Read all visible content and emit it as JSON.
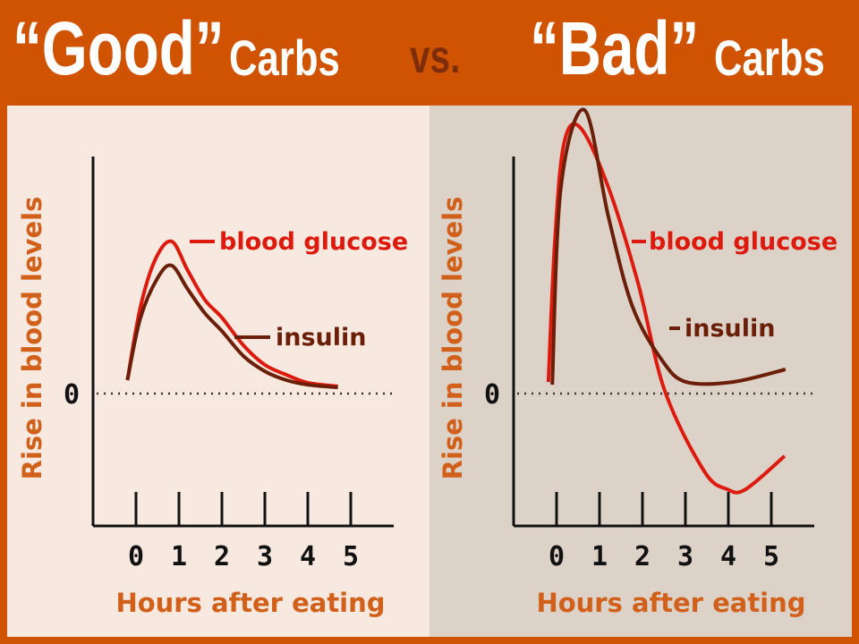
{
  "title": {
    "good": "“Good”",
    "carbs_left": "Carbs",
    "vs": "vs.",
    "bad": "“Bad”",
    "carbs_right": "Carbs"
  },
  "colors": {
    "frame": "#cf5300",
    "good_bg": "#f7e9df",
    "bad_bg": "#ddd2c8",
    "glucose": "#dd1a0e",
    "insulin": "#6b1f08",
    "axis_label": "#d0601a"
  },
  "chart_data": [
    {
      "type": "line",
      "title": "“Good” Carbs",
      "xlabel": "Hours after eating",
      "ylabel": "Rise in blood levels",
      "xticks": [
        "0",
        "1",
        "2",
        "3",
        "4",
        "5"
      ],
      "yticks": [
        "0"
      ],
      "xlim": [
        -1,
        6.2
      ],
      "ylim": [
        -4.9,
        8.8
      ],
      "series": [
        {
          "name": "blood glucose",
          "color": "#dd1a0e",
          "x": [
            -0.2,
            0.1,
            0.45,
            0.83,
            1.2,
            1.6,
            2,
            2.5,
            3,
            3.5,
            4,
            4.7
          ],
          "y": [
            0.5,
            3.2,
            5.0,
            5.67,
            4.6,
            3.5,
            2.83,
            1.8,
            1.07,
            0.7,
            0.4,
            0.27
          ]
        },
        {
          "name": "insulin",
          "color": "#6b1f08",
          "x": [
            -0.2,
            0.1,
            0.5,
            0.83,
            1.2,
            1.6,
            2,
            2.5,
            3,
            3.5,
            4,
            4.7
          ],
          "y": [
            0.5,
            2.8,
            4.3,
            4.77,
            3.9,
            3.0,
            2.33,
            1.4,
            0.83,
            0.5,
            0.33,
            0.23
          ]
        }
      ]
    },
    {
      "type": "line",
      "title": "“Bad” Carbs",
      "xlabel": "Hours after eating",
      "ylabel": "Rise in blood levels",
      "xticks": [
        "0",
        "1",
        "2",
        "3",
        "4",
        "5"
      ],
      "yticks": [
        "0"
      ],
      "xlim": [
        -1,
        6.6
      ],
      "ylim": [
        -4.9,
        8.8
      ],
      "series": [
        {
          "name": "blood glucose",
          "color": "#dd1a0e",
          "x": [
            -0.19,
            -0.04,
            0.17,
            0.54,
            1.21,
            1.9,
            2.52,
            3.44,
            3.98,
            4.4,
            5.31
          ],
          "y": [
            0.43,
            5.67,
            9.3,
            9.93,
            7.67,
            4.1,
            0.1,
            -2.9,
            -3.57,
            -3.57,
            -2.33
          ]
        },
        {
          "name": "insulin",
          "color": "#6b1f08",
          "x": [
            -0.1,
            0.1,
            0.65,
            1.21,
            1.77,
            2.46,
            3.02,
            4.1,
            5.33
          ],
          "y": [
            0.33,
            7.67,
            10.57,
            6.57,
            3.23,
            1.23,
            0.43,
            0.43,
            0.9
          ]
        }
      ]
    }
  ]
}
